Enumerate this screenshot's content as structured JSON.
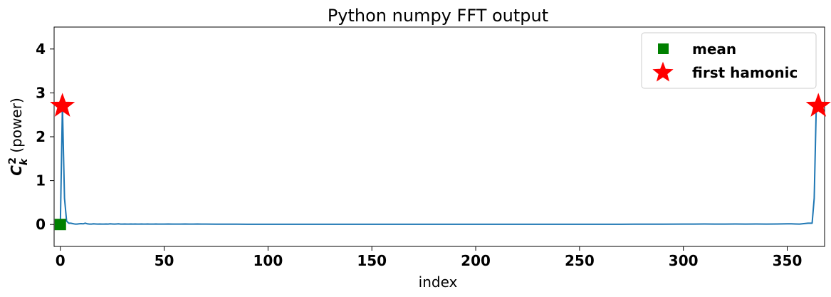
{
  "chart_data": {
    "type": "line",
    "title": "Python numpy FFT output",
    "xlabel": "index",
    "ylabel_main": "C",
    "ylabel_sup": "2",
    "ylabel_sub": "k",
    "ylabel_suffix": " (power)",
    "xlim": [
      -3,
      368
    ],
    "ylim": [
      -0.5,
      4.5
    ],
    "xticks": [
      0,
      50,
      100,
      150,
      200,
      250,
      300,
      350
    ],
    "yticks": [
      0,
      1,
      2,
      3,
      4
    ],
    "grid": false,
    "legend_position": "top-right",
    "line_color": "#1f77b4",
    "series": [
      {
        "x": [
          0,
          1,
          2,
          3,
          4,
          5,
          6,
          7,
          8,
          9,
          10,
          11,
          12,
          13,
          14,
          15,
          16,
          17,
          18,
          19,
          20,
          21,
          22,
          23,
          24,
          25,
          26,
          27,
          28,
          29,
          30,
          31,
          32,
          33,
          34,
          35,
          36,
          37,
          38,
          39,
          40,
          41,
          42,
          43,
          44,
          45,
          46,
          47,
          48,
          49,
          50,
          52,
          54,
          56,
          58,
          60,
          62,
          64,
          66,
          68,
          70,
          75,
          80,
          85,
          90,
          95,
          100,
          110,
          120,
          130,
          140,
          150,
          160,
          170,
          180,
          190,
          200,
          210,
          220,
          230,
          240,
          250,
          260,
          270,
          280,
          290,
          300,
          305,
          310,
          315,
          320,
          325,
          330,
          335,
          340,
          345,
          350,
          352,
          354,
          356,
          358,
          360,
          361,
          362,
          363,
          364,
          365
        ],
        "y": [
          0,
          2.7,
          0.6,
          0.08,
          0.03,
          0.03,
          0.02,
          0.01,
          0.01,
          0.015,
          0.02,
          0.015,
          0.03,
          0.015,
          0.01,
          0.01,
          0.015,
          0.012,
          0.01,
          0.012,
          0.01,
          0.01,
          0.012,
          0.01,
          0.015,
          0.012,
          0.01,
          0.012,
          0.015,
          0.01,
          0.01,
          0.012,
          0.01,
          0.01,
          0.012,
          0.01,
          0.012,
          0.01,
          0.01,
          0.012,
          0.01,
          0.01,
          0.012,
          0.01,
          0.01,
          0.01,
          0.012,
          0.01,
          0.01,
          0.01,
          0.01,
          0.012,
          0.01,
          0.01,
          0.01,
          0.012,
          0.01,
          0.01,
          0.012,
          0.01,
          0.01,
          0.008,
          0.008,
          0.008,
          0.006,
          0.006,
          0.006,
          0.005,
          0.005,
          0.005,
          0.005,
          0.005,
          0.005,
          0.005,
          0.005,
          0.005,
          0.005,
          0.005,
          0.005,
          0.005,
          0.005,
          0.006,
          0.006,
          0.006,
          0.008,
          0.008,
          0.01,
          0.01,
          0.012,
          0.01,
          0.01,
          0.012,
          0.01,
          0.012,
          0.01,
          0.012,
          0.015,
          0.015,
          0.012,
          0.01,
          0.02,
          0.03,
          0.03,
          0.03,
          0.6,
          2.7,
          2.7
        ]
      }
    ],
    "markers": [
      {
        "name": "mean",
        "shape": "square",
        "color": "#008000",
        "points": [
          [
            0,
            0
          ]
        ]
      },
      {
        "name": "first hamonic",
        "shape": "star",
        "color": "#ff0000",
        "points": [
          [
            1,
            2.7
          ],
          [
            365,
            2.7
          ]
        ]
      }
    ]
  }
}
